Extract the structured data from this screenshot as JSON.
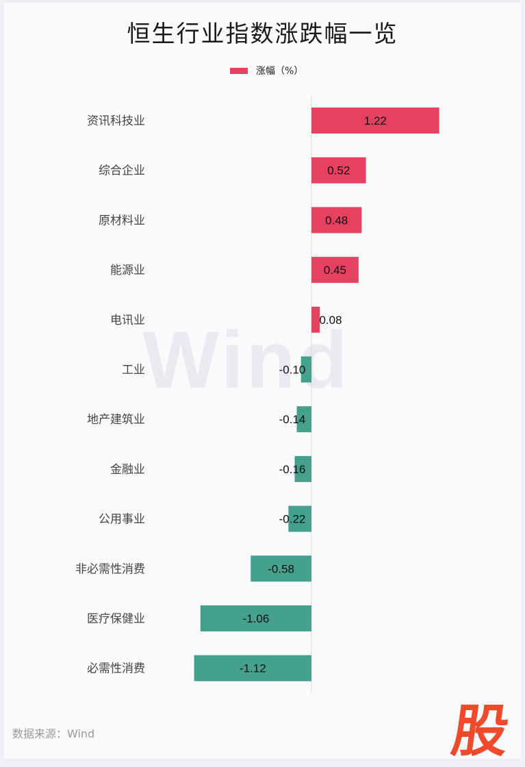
{
  "chart_data": {
    "type": "bar",
    "orientation": "horizontal",
    "title": "恒生行业指数涨跌幅一览",
    "categories": [
      "资讯科技业",
      "综合企业",
      "原材料业",
      "能源业",
      "电讯业",
      "工业",
      "地产建筑业",
      "金融业",
      "公用事业",
      "非必需性消费",
      "医疗保健业",
      "必需性消费"
    ],
    "series": [
      {
        "name": "涨幅（%）",
        "values": [
          1.22,
          0.52,
          0.48,
          0.45,
          0.08,
          -0.1,
          -0.14,
          -0.16,
          -0.22,
          -0.58,
          -1.06,
          -1.12
        ],
        "labels": [
          "1.22",
          "0.52",
          "0.48",
          "0.45",
          "0.08",
          "-0.10",
          "-0.14",
          "-0.16",
          "-0.22",
          "-0.58",
          "-1.06",
          "-1.12"
        ]
      }
    ],
    "legend": "top-center",
    "grid": false,
    "xlim": [
      -1.12,
      1.22
    ]
  },
  "colors": {
    "positive": "#e8405f",
    "negative": "#45a08e"
  },
  "watermark": "Wind",
  "source": "数据来源：Wind",
  "logo_text": "股"
}
